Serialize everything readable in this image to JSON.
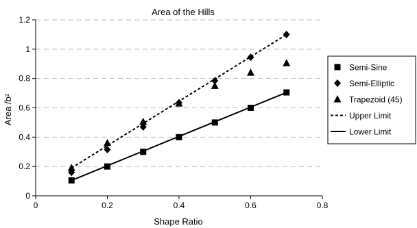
{
  "chart_data": {
    "type": "scatter",
    "title": "Area of the Hills",
    "xlabel": "Shape Ratio",
    "ylabel": "Area /b²",
    "xlim": [
      0,
      0.8
    ],
    "ylim": [
      0,
      1.2
    ],
    "xticks": [
      0,
      0.2,
      0.4,
      0.6,
      0.8
    ],
    "xtick_labels": [
      "0",
      "0.2",
      "0.4",
      "0.6",
      "0.8"
    ],
    "yticks": [
      0,
      0.2,
      0.4,
      0.6,
      0.8,
      1.0,
      1.2
    ],
    "ytick_labels": [
      "0",
      "0.2",
      "0.4",
      "0.6",
      "0.8",
      "1",
      "1.2"
    ],
    "grid": "horizontal dashed",
    "legend_position": "right",
    "series": [
      {
        "name": "Semi-Sine",
        "kind": "marker",
        "marker": "square",
        "x": [
          0.1,
          0.2,
          0.3,
          0.4,
          0.5,
          0.6,
          0.7
        ],
        "y": [
          0.105,
          0.2,
          0.3,
          0.4,
          0.5,
          0.6,
          0.705
        ]
      },
      {
        "name": "Semi-Elliptic",
        "kind": "marker",
        "marker": "diamond",
        "x": [
          0.1,
          0.2,
          0.3,
          0.4,
          0.5,
          0.6,
          0.7
        ],
        "y": [
          0.16,
          0.315,
          0.47,
          0.635,
          0.785,
          0.945,
          1.1
        ]
      },
      {
        "name": "Trapezoid (45)",
        "kind": "marker",
        "marker": "triangle",
        "x": [
          0.1,
          0.2,
          0.3,
          0.4,
          0.5,
          0.6,
          0.7
        ],
        "y": [
          0.19,
          0.36,
          0.505,
          0.63,
          0.75,
          0.84,
          0.905
        ]
      },
      {
        "name": "Upper Limit",
        "kind": "line",
        "dash": "dotted",
        "x": [
          0.1,
          0.7
        ],
        "y": [
          0.19,
          1.1
        ]
      },
      {
        "name": "Lower Limit",
        "kind": "line",
        "dash": "solid",
        "x": [
          0.1,
          0.7
        ],
        "y": [
          0.105,
          0.705
        ]
      }
    ]
  }
}
